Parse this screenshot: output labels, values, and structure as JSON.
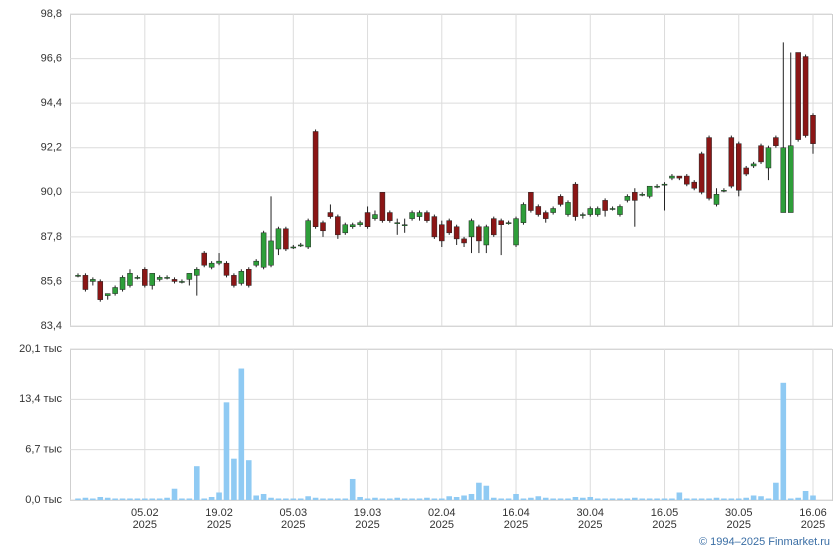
{
  "chart_data": [
    {
      "type": "candlestick",
      "categories": [
        null,
        null,
        null,
        null,
        null,
        null,
        null,
        null,
        null,
        [
          "05.02",
          "2025"
        ],
        null,
        null,
        null,
        null,
        null,
        null,
        null,
        null,
        null,
        [
          "19.02",
          "2025"
        ],
        null,
        null,
        null,
        null,
        null,
        null,
        null,
        null,
        null,
        [
          "05.03",
          "2025"
        ],
        null,
        null,
        null,
        null,
        null,
        null,
        null,
        null,
        null,
        [
          "19.03",
          "2025"
        ],
        null,
        null,
        null,
        null,
        null,
        null,
        null,
        null,
        null,
        [
          "02.04",
          "2025"
        ],
        null,
        null,
        null,
        null,
        null,
        null,
        null,
        null,
        null,
        [
          "16.04",
          "2025"
        ],
        null,
        null,
        null,
        null,
        null,
        null,
        null,
        null,
        null,
        [
          "30.04",
          "2025"
        ],
        null,
        null,
        null,
        null,
        null,
        null,
        null,
        null,
        null,
        [
          "16.05",
          "2025"
        ],
        null,
        null,
        null,
        null,
        null,
        null,
        null,
        null,
        null,
        [
          "30.05",
          "2025"
        ],
        null,
        null,
        null,
        null,
        null,
        null,
        null,
        null,
        null,
        [
          "16.06",
          "2025"
        ]
      ],
      "open": [
        85.9,
        85.9,
        85.6,
        85.6,
        84.9,
        85.0,
        85.2,
        85.4,
        85.8,
        86.2,
        85.4,
        85.7,
        85.8,
        85.7,
        85.6,
        85.7,
        85.9,
        87.0,
        86.3,
        86.5,
        86.5,
        85.9,
        85.5,
        86.2,
        86.4,
        86.3,
        86.4,
        87.2,
        88.2,
        87.3,
        87.4,
        87.3,
        93.0,
        88.5,
        89.0,
        88.8,
        88.0,
        88.3,
        88.4,
        89.0,
        88.7,
        90.0,
        89.0,
        88.5,
        88.4,
        88.7,
        88.8,
        89.0,
        88.8,
        88.4,
        88.6,
        88.3,
        87.7,
        87.8,
        88.3,
        87.4,
        88.7,
        88.6,
        88.5,
        87.4,
        88.5,
        90.0,
        89.3,
        89.0,
        89.0,
        89.8,
        88.9,
        90.4,
        88.9,
        88.9,
        88.9,
        89.6,
        89.2,
        88.9,
        89.6,
        90.0,
        89.9,
        89.8,
        90.3,
        90.4,
        90.7,
        90.8,
        90.8,
        90.5,
        91.9,
        92.7,
        89.4,
        90.1,
        92.7,
        92.4,
        91.2,
        91.3,
        92.3,
        91.2,
        92.7,
        89.0,
        89.0,
        96.9,
        96.7,
        93.8
      ],
      "high": [
        86.0,
        86.0,
        85.8,
        85.7,
        85.0,
        85.4,
        85.9,
        86.2,
        85.9,
        86.3,
        86.0,
        85.9,
        85.9,
        85.8,
        85.7,
        86.0,
        86.3,
        87.1,
        86.6,
        87.0,
        86.6,
        86.0,
        86.2,
        86.3,
        86.7,
        88.1,
        89.8,
        88.3,
        88.3,
        87.4,
        87.5,
        88.7,
        93.1,
        88.6,
        89.4,
        88.9,
        88.5,
        88.5,
        88.6,
        89.3,
        89.1,
        90.0,
        89.1,
        88.7,
        88.7,
        89.1,
        89.1,
        89.1,
        88.9,
        88.6,
        88.7,
        88.4,
        87.8,
        88.7,
        88.4,
        88.4,
        88.8,
        88.7,
        88.6,
        88.8,
        89.5,
        90.0,
        89.4,
        89.1,
        89.3,
        89.9,
        89.6,
        90.5,
        89.0,
        89.3,
        89.3,
        89.7,
        89.3,
        89.4,
        89.9,
        90.2,
        90.0,
        90.3,
        90.4,
        90.5,
        90.9,
        90.8,
        90.9,
        90.6,
        92.0,
        92.8,
        90.2,
        90.2,
        92.8,
        92.5,
        91.3,
        91.5,
        92.4,
        92.3,
        92.8,
        97.4,
        96.9,
        96.9,
        96.8,
        93.9
      ],
      "low": [
        85.8,
        85.1,
        85.4,
        84.6,
        84.7,
        84.9,
        85.1,
        85.3,
        85.7,
        85.3,
        85.2,
        85.6,
        85.7,
        85.5,
        85.5,
        85.4,
        84.9,
        86.3,
        86.2,
        86.4,
        85.8,
        85.3,
        85.4,
        85.3,
        86.3,
        86.2,
        86.3,
        86.9,
        87.1,
        87.2,
        87.3,
        87.2,
        88.2,
        87.8,
        88.7,
        87.7,
        87.9,
        88.2,
        88.3,
        88.2,
        88.6,
        88.5,
        88.5,
        87.9,
        88.0,
        88.6,
        88.6,
        88.5,
        87.7,
        87.3,
        87.9,
        87.4,
        87.3,
        87.0,
        87.0,
        87.0,
        87.8,
        86.9,
        88.4,
        87.3,
        88.4,
        89.0,
        88.8,
        88.5,
        88.9,
        89.3,
        88.8,
        88.6,
        88.7,
        88.8,
        88.8,
        88.8,
        89.1,
        88.8,
        89.5,
        88.3,
        89.8,
        89.7,
        90.2,
        89.1,
        90.6,
        90.6,
        90.3,
        90.1,
        89.9,
        89.6,
        89.3,
        90.0,
        90.2,
        89.8,
        90.8,
        91.2,
        91.4,
        90.6,
        92.2,
        89.0,
        89.0,
        92.5,
        92.7,
        91.9
      ],
      "close": [
        85.9,
        85.2,
        85.7,
        84.7,
        85.0,
        85.3,
        85.8,
        86.0,
        85.8,
        85.4,
        86.0,
        85.8,
        85.8,
        85.6,
        85.6,
        86.0,
        86.2,
        86.4,
        86.5,
        86.6,
        85.9,
        85.4,
        86.1,
        85.4,
        86.6,
        88.0,
        87.6,
        88.2,
        87.2,
        87.3,
        87.4,
        88.6,
        88.3,
        88.1,
        88.8,
        87.9,
        88.4,
        88.4,
        88.5,
        88.3,
        88.9,
        88.6,
        88.6,
        88.5,
        88.4,
        89.0,
        89.0,
        88.6,
        87.8,
        87.6,
        88.0,
        87.7,
        87.5,
        88.6,
        87.6,
        88.3,
        87.9,
        88.4,
        88.5,
        88.7,
        89.4,
        89.1,
        88.9,
        88.7,
        89.2,
        89.4,
        89.5,
        88.8,
        88.9,
        89.2,
        89.2,
        89.1,
        89.2,
        89.3,
        89.8,
        89.6,
        89.9,
        90.3,
        90.3,
        90.4,
        90.8,
        90.7,
        90.4,
        90.2,
        90.0,
        89.7,
        89.9,
        90.1,
        90.3,
        90.1,
        90.9,
        91.4,
        91.5,
        92.2,
        92.3,
        92.2,
        92.3,
        92.6,
        92.8,
        92.4
      ],
      "up_color": "#2e9e3a",
      "down_color": "#8b1616",
      "ylim": [
        83.4,
        98.8
      ],
      "yticks": [
        {
          "value": 83.4,
          "label": "83,4"
        },
        {
          "value": 85.6,
          "label": "85,6"
        },
        {
          "value": 87.8,
          "label": "87,8"
        },
        {
          "value": 90.0,
          "label": "90,0"
        },
        {
          "value": 92.2,
          "label": "92,2"
        },
        {
          "value": 94.4,
          "label": "94,4"
        },
        {
          "value": 96.6,
          "label": "96,6"
        },
        {
          "value": 98.8,
          "label": "98,8"
        }
      ],
      "grid": true
    },
    {
      "type": "bar",
      "values": [
        0.2,
        0.3,
        0.2,
        0.4,
        0.3,
        0.2,
        0.2,
        0.2,
        0.2,
        0.2,
        0.2,
        0.2,
        0.3,
        1.5,
        0.2,
        0.2,
        4.5,
        0.2,
        0.4,
        1.0,
        13.0,
        5.5,
        17.5,
        5.3,
        0.6,
        0.8,
        0.3,
        0.2,
        0.2,
        0.2,
        0.2,
        0.5,
        0.3,
        0.2,
        0.2,
        0.2,
        0.2,
        2.8,
        0.4,
        0.2,
        0.3,
        0.2,
        0.2,
        0.3,
        0.2,
        0.2,
        0.2,
        0.3,
        0.2,
        0.2,
        0.5,
        0.4,
        0.6,
        0.8,
        2.3,
        1.9,
        0.3,
        0.2,
        0.2,
        0.8,
        0.2,
        0.3,
        0.5,
        0.3,
        0.2,
        0.2,
        0.2,
        0.4,
        0.3,
        0.4,
        0.2,
        0.2,
        0.2,
        0.2,
        0.2,
        0.3,
        0.2,
        0.2,
        0.2,
        0.2,
        0.2,
        1.0,
        0.2,
        0.2,
        0.2,
        0.2,
        0.3,
        0.2,
        0.2,
        0.2,
        0.3,
        0.6,
        0.5,
        0.2,
        2.3,
        15.6,
        0.2,
        0.3,
        1.2,
        0.6
      ],
      "color": "#8fcaf3",
      "ylim": [
        0,
        20.1
      ],
      "yticks": [
        {
          "value": 0,
          "label": "0,0 тыс"
        },
        {
          "value": 6.7,
          "label": "6,7 тыс"
        },
        {
          "value": 13.4,
          "label": "13,4 тыс"
        },
        {
          "value": 20.1,
          "label": "20,1 тыс"
        }
      ],
      "grid": true
    }
  ],
  "footer": "© 1994–2025 Finmarket.ru"
}
